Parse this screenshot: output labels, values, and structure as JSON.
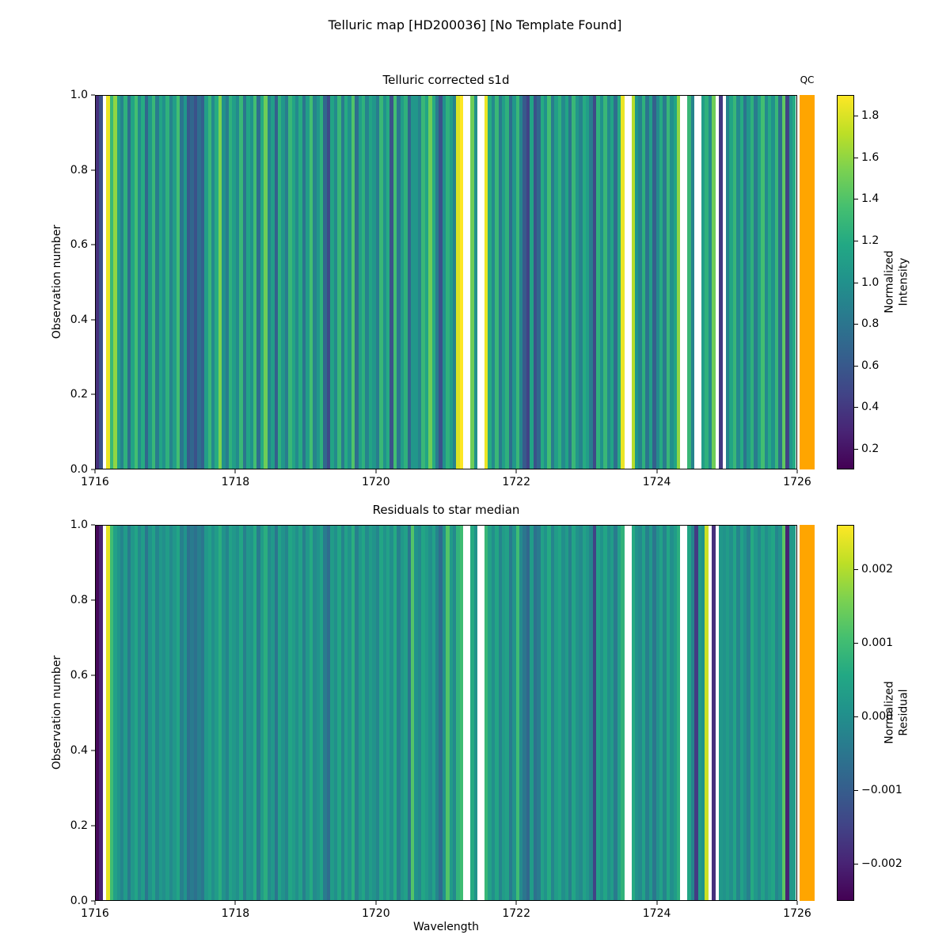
{
  "figure": {
    "title": "Telluric map [HD200036] [No Template Found]",
    "background": "#ffffff"
  },
  "colormap": {
    "name": "viridis",
    "stops": [
      "#440154",
      "#482475",
      "#414487",
      "#355f8d",
      "#2a788e",
      "#21918c",
      "#22a884",
      "#44bf70",
      "#7ad151",
      "#bddf26",
      "#fde725"
    ],
    "masked_color": "#ffffff"
  },
  "chart_data": [
    {
      "type": "heatmap",
      "title": "Telluric corrected s1d",
      "xlabel": "",
      "ylabel": "Observation number",
      "x_range": [
        1716,
        1726
      ],
      "y_range": [
        0.0,
        1.0
      ],
      "x_ticks": [
        1716,
        1718,
        1720,
        1722,
        1724,
        1726
      ],
      "y_ticks": [
        "1.0",
        "0.8",
        "0.6",
        "0.4",
        "0.2",
        "0.0"
      ],
      "qc": {
        "label": "QC",
        "color": "#FFA500"
      },
      "colorbar": {
        "label": "Normalized Intensity",
        "label_lines": [
          "Normalized",
          "Intensity"
        ],
        "vmin": 0.1,
        "vmax": 1.9,
        "tick_values": [
          1.8,
          1.6,
          1.4,
          1.2,
          1.0,
          0.8,
          0.6,
          0.4,
          0.2
        ],
        "tick_labels": [
          "1.8",
          "1.6",
          "1.4",
          "1.2",
          "1.0",
          "0.8",
          "0.6",
          "0.4",
          "0.2"
        ]
      },
      "values": [
        0.35,
        0.55,
        null,
        1.85,
        1.3,
        1.6,
        1.1,
        0.9,
        1.25,
        0.75,
        1.15,
        1.35,
        0.95,
        1.2,
        0.7,
        1.05,
        1.3,
        0.85,
        1.15,
        1.0,
        1.25,
        0.9,
        1.1,
        1.35,
        0.8,
        1.05,
        0.6,
        0.7,
        0.55,
        0.75,
        0.65,
        1.1,
        1.3,
        0.95,
        1.2,
        1.55,
        1.0,
        0.85,
        1.25,
        1.1,
        0.95,
        1.3,
        0.8,
        1.15,
        1.0,
        1.35,
        0.75,
        1.2,
        1.5,
        0.9,
        1.1,
        0.65,
        1.25,
        1.05,
        0.85,
        1.3,
        1.15,
        0.95,
        1.2,
        0.8,
        1.1,
        1.35,
        0.9,
        1.05,
        1.25,
        0.7,
        0.5,
        1.15,
        0.95,
        1.3,
        0.85,
        1.2,
        1.0,
        1.4,
        0.75,
        1.1,
        1.25,
        0.9,
        1.15,
        1.05,
        0.85,
        1.3,
        1.0,
        1.2,
        0.55,
        1.35,
        0.8,
        1.1,
        1.25,
        0.7,
        1.05,
        1.05,
        0.9,
        1.3,
        1.15,
        1.5,
        1.2,
        0.85,
        0.55,
        1.0,
        1.25,
        1.1,
        0.9,
        1.8,
        1.9,
        null,
        null,
        1.5,
        1.0,
        null,
        null,
        1.85,
        1.2,
        0.95,
        1.3,
        0.85,
        1.1,
        1.25,
        0.75,
        1.05,
        1.3,
        0.9,
        0.6,
        0.45,
        1.15,
        0.55,
        0.7,
        1.2,
        1.0,
        1.35,
        0.85,
        1.1,
        1.25,
        0.95,
        1.15,
        0.8,
        1.3,
        1.05,
        0.9,
        1.2,
        1.1,
        0.85,
        0.5,
        1.25,
        1.0,
        1.3,
        0.95,
        1.15,
        0.75,
        1.2,
        1.85,
        null,
        null,
        1.7,
        1.05,
        0.9,
        1.25,
        0.8,
        1.1,
        0.65,
        0.95,
        1.2,
        0.85,
        1.3,
        1.0,
        1.15,
        1.6,
        null,
        null,
        1.3,
        0.9,
        null,
        null,
        1.1,
        1.25,
        0.95,
        1.5,
        null,
        0.4,
        null,
        0.9,
        1.15,
        1.3,
        0.95,
        1.2,
        0.8,
        1.05,
        1.25,
        0.85,
        1.1,
        1.35,
        0.95,
        1.2,
        1.0,
        1.3,
        0.75,
        1.45,
        0.45,
        1.05,
        1.2
      ]
    },
    {
      "type": "heatmap",
      "title": "Residuals to star median",
      "xlabel": "Wavelength",
      "ylabel": "Observation number",
      "x_range": [
        1716,
        1726
      ],
      "y_range": [
        0.0,
        1.0
      ],
      "x_ticks": [
        1716,
        1718,
        1720,
        1722,
        1724,
        1726
      ],
      "y_ticks": [
        "1.0",
        "0.8",
        "0.6",
        "0.4",
        "0.2",
        "0.0"
      ],
      "qc": {
        "color": "#FFA500"
      },
      "colorbar": {
        "label": "Normalized Residual",
        "label_lines": [
          "Normalized",
          "Residual"
        ],
        "vmin": -0.0025,
        "vmax": 0.0026,
        "tick_values": [
          0.002,
          0.001,
          0.0,
          -0.001,
          -0.002
        ],
        "tick_labels": [
          "0.002",
          "0.001",
          "0.000",
          "−0.001",
          "−0.002"
        ]
      },
      "values": [
        -0.0024,
        -0.002,
        null,
        0.0024,
        0.001,
        0.0004,
        0.0001,
        -0.0002,
        0.0003,
        -0.0004,
        0.0002,
        0.0005,
        -0.0001,
        0.0003,
        -0.0005,
        0.0001,
        0.0004,
        -0.0002,
        0.0002,
        0.0,
        0.0003,
        -0.0001,
        0.0002,
        0.0005,
        -0.0003,
        0.0001,
        -0.0006,
        -0.0004,
        -0.0006,
        -0.0003,
        -0.0005,
        0.0002,
        0.0004,
        0.0,
        0.0003,
        0.0007,
        0.0001,
        -0.0002,
        0.0004,
        0.0002,
        0.0,
        0.0005,
        -0.0003,
        0.0002,
        0.0001,
        0.0006,
        -0.0004,
        0.0003,
        0.0007,
        -0.0001,
        0.0002,
        -0.0005,
        0.0004,
        0.0001,
        -0.0002,
        0.0005,
        0.0003,
        0.0,
        0.0004,
        -0.0003,
        0.0002,
        0.0006,
        -0.0001,
        0.0001,
        0.0004,
        -0.0004,
        -0.0007,
        0.0003,
        0.0,
        0.0005,
        -0.0002,
        0.0004,
        0.0001,
        0.0007,
        -0.0003,
        0.0002,
        0.0005,
        -0.0001,
        0.0003,
        0.0001,
        -0.0002,
        0.0005,
        0.0001,
        0.0004,
        0.0,
        0.0006,
        -0.0003,
        0.0002,
        0.0004,
        -0.0005,
        0.0012,
        0.0001,
        -0.0001,
        0.0005,
        0.0003,
        0.0,
        0.0004,
        -0.0002,
        -0.0007,
        0.0001,
        0.0012,
        0.0003,
        -0.0001,
        0.0008,
        0.001,
        null,
        null,
        0.0006,
        0.0001,
        null,
        null,
        0.0009,
        0.0004,
        0.0,
        0.0005,
        -0.0002,
        0.0003,
        0.0004,
        -0.0004,
        0.0001,
        0.001,
        -0.0001,
        -0.0005,
        -0.0008,
        0.0003,
        -0.0006,
        -0.0004,
        0.0004,
        0.0001,
        0.0006,
        -0.0002,
        0.0003,
        0.0005,
        0.0,
        0.0003,
        -0.0003,
        0.0005,
        0.0001,
        -0.0001,
        0.0004,
        0.0002,
        -0.0002,
        -0.0015,
        0.0004,
        0.0001,
        0.0005,
        0.0,
        0.0003,
        -0.0004,
        0.0004,
        0.0008,
        null,
        null,
        0.0006,
        0.0001,
        -0.0001,
        0.0004,
        -0.0003,
        0.0002,
        -0.0005,
        0.0001,
        0.0004,
        -0.0002,
        0.0005,
        0.0,
        0.0003,
        0.0007,
        null,
        null,
        0.0005,
        -0.0002,
        -0.0016,
        0.0003,
        0.0001,
        0.0022,
        null,
        -0.0018,
        null,
        0.0002,
        0.0001,
        0.0003,
        0.0,
        0.0005,
        -0.0002,
        0.0004,
        0.0001,
        -0.0003,
        0.0006,
        0.0002,
        -0.0001,
        0.0004,
        0.0,
        0.0003,
        0.0005,
        -0.0002,
        0.0001,
        0.0013,
        -0.002,
        0.0002,
        0.0003
      ]
    }
  ]
}
